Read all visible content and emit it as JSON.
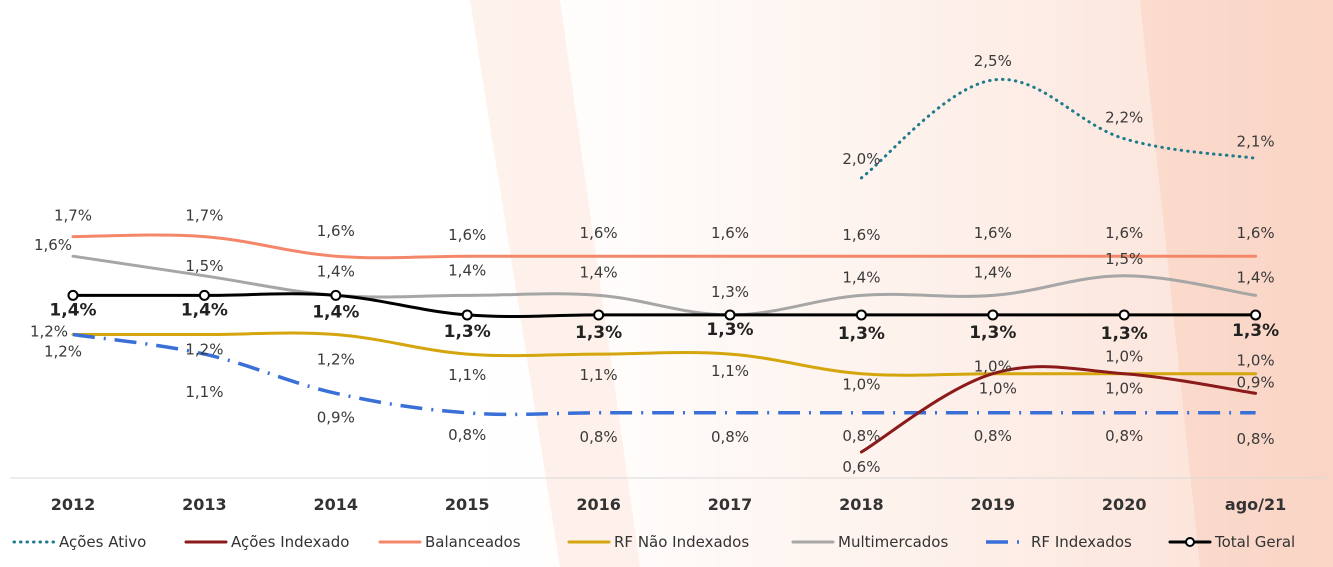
{
  "chart_data": {
    "type": "line",
    "categories": [
      "2012",
      "2013",
      "2014",
      "2015",
      "2016",
      "2017",
      "2018",
      "2019",
      "2020",
      "ago/21"
    ],
    "legend_position": "bottom",
    "grid": false,
    "series": [
      {
        "name": "Ações Ativo",
        "color": "#1f7a8c",
        "style": "dotted",
        "values": [
          null,
          null,
          null,
          null,
          null,
          null,
          2.0,
          2.5,
          2.2,
          2.1
        ],
        "labels": [
          "",
          "",
          "",
          "",
          "",
          "",
          "2,0%",
          "2,5%",
          "2,2%",
          "2,1%"
        ]
      },
      {
        "name": "Ações Indexado",
        "color": "#8b1a1a",
        "style": "solid",
        "values": [
          null,
          null,
          null,
          null,
          null,
          null,
          0.6,
          1.0,
          1.0,
          0.9
        ],
        "labels": [
          "",
          "",
          "",
          "",
          "",
          "",
          "0,6%",
          "1,0%",
          "1,0%",
          "0,9%"
        ]
      },
      {
        "name": "Balanceados",
        "color": "#f4876a",
        "style": "solid",
        "values": [
          1.7,
          1.7,
          1.6,
          1.6,
          1.6,
          1.6,
          1.6,
          1.6,
          1.6,
          1.6
        ],
        "labels": [
          "1,7%",
          "1,7%",
          "1,6%",
          "1,6%",
          "1,6%",
          "1,6%",
          "1,6%",
          "1,6%",
          "1,6%",
          "1,6%"
        ]
      },
      {
        "name": "RF Não Indexados",
        "color": "#d4a50c",
        "style": "solid",
        "values": [
          1.2,
          1.2,
          1.2,
          1.1,
          1.1,
          1.1,
          1.0,
          1.0,
          1.0,
          1.0
        ],
        "labels": [
          "1,2%",
          "1,2%",
          "1,2%",
          "1,1%",
          "1,1%",
          "1,1%",
          "1,0%",
          "1,0%",
          "1,0%",
          "1,0%"
        ]
      },
      {
        "name": "Multimercados",
        "color": "#a6a6a6",
        "style": "solid",
        "values": [
          1.6,
          1.5,
          1.4,
          1.4,
          1.4,
          1.3,
          1.4,
          1.4,
          1.5,
          1.4
        ],
        "labels": [
          "1,6%",
          "1,5%",
          "1,4%",
          "1,4%",
          "1,4%",
          "1,3%",
          "1,4%",
          "1,4%",
          "1,5%",
          "1,4%"
        ]
      },
      {
        "name": "RF Indexados",
        "color": "#3a6fd8",
        "style": "dashdot",
        "values": [
          1.2,
          1.1,
          0.9,
          0.8,
          0.8,
          0.8,
          0.8,
          0.8,
          0.8,
          0.8
        ],
        "labels": [
          "1,2%",
          "1,1%",
          "0,9%",
          "0,8%",
          "0,8%",
          "0,8%",
          "0,8%",
          "0,8%",
          "0,8%",
          "0,8%"
        ]
      },
      {
        "name": "Total Geral",
        "color": "#000000",
        "style": "solid-markers",
        "values": [
          1.4,
          1.4,
          1.4,
          1.3,
          1.3,
          1.3,
          1.3,
          1.3,
          1.3,
          1.3
        ],
        "labels": [
          "1,4%",
          "1,4%",
          "1,4%",
          "1,3%",
          "1,3%",
          "1,3%",
          "1,3%",
          "1,3%",
          "1,3%",
          "1,3%"
        ]
      }
    ]
  }
}
